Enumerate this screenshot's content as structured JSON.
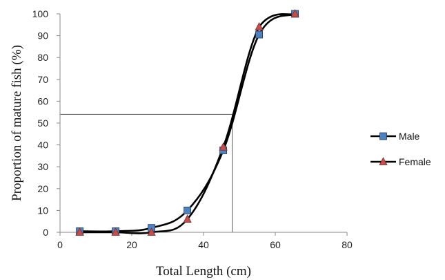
{
  "chart_data": {
    "type": "line",
    "title": "",
    "xlabel": "Total Length (cm)",
    "ylabel": "Proportion of mature fish (%)",
    "xlim": [
      0,
      80
    ],
    "ylim": [
      0,
      100
    ],
    "x_ticks": [
      0,
      20,
      40,
      60,
      80
    ],
    "y_ticks": [
      0,
      10,
      20,
      30,
      40,
      50,
      60,
      70,
      80,
      90,
      100
    ],
    "grid": false,
    "legend_position": "right",
    "series": [
      {
        "name": "Male",
        "marker": "square",
        "marker_color": "#4F81BD",
        "line_color": "#000000",
        "x": [
          5.5,
          15.5,
          25.5,
          35.5,
          45.5,
          55.5,
          65.5
        ],
        "y": [
          0.5,
          0.5,
          2,
          10,
          37.5,
          90.5,
          100
        ]
      },
      {
        "name": "Female",
        "marker": "triangle",
        "marker_color": "#C0504D",
        "line_color": "#000000",
        "x": [
          5.5,
          15.5,
          25.5,
          35.5,
          45.5,
          55.5,
          65.5
        ],
        "y": [
          0,
          0,
          0,
          6,
          39,
          94,
          100
        ]
      }
    ],
    "reference_lines": {
      "x": 48,
      "y": 54
    }
  }
}
